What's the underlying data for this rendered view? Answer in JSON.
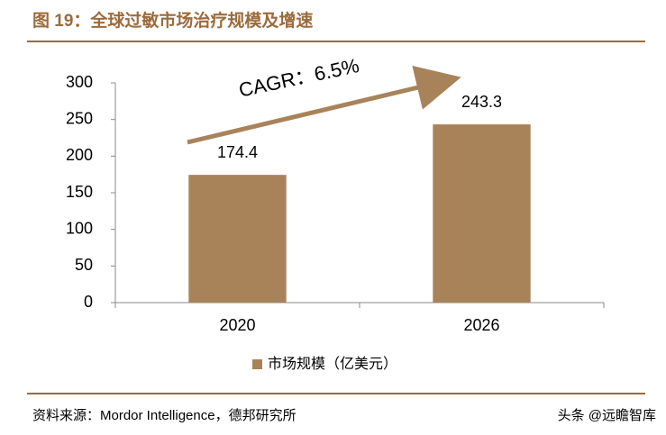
{
  "chart_data": {
    "type": "bar",
    "title": "图 19：全球过敏市场治疗规模及增速",
    "categories": [
      "2020",
      "2026"
    ],
    "series": [
      {
        "name": "市场规模（亿美元）",
        "color": "#a8835a",
        "values": [
          174.4,
          243.3
        ]
      }
    ],
    "ylim": [
      0,
      300
    ],
    "yticks": [
      0,
      50,
      100,
      150,
      200,
      250,
      300
    ],
    "grid": false,
    "annotation": "CAGR：6.5%",
    "source": "资料来源：Mordor Intelligence，德邦研究所",
    "watermark": "头条 @远瞻智库"
  }
}
